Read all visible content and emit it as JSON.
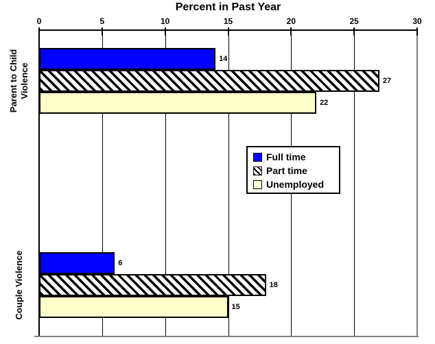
{
  "chart_data": {
    "type": "bar",
    "orientation": "horizontal",
    "title": "Percent in Past Year",
    "axis": {
      "position": "top",
      "min": 0,
      "max": 30,
      "ticks": [
        0,
        5,
        10,
        15,
        20,
        25,
        30
      ],
      "grid": true
    },
    "categories": [
      {
        "name": "parent-to-child-violence",
        "label": "Parent to Child\nViolence"
      },
      {
        "name": "couple-violence",
        "label": "Couple Violence"
      }
    ],
    "series": [
      {
        "name": "Full time",
        "pattern": "solid",
        "color": "#0000ff",
        "values": [
          14,
          6
        ]
      },
      {
        "name": "Part time",
        "pattern": "diagonal-hatch",
        "color": "#000000",
        "values": [
          27,
          18
        ]
      },
      {
        "name": "Unemployed",
        "pattern": "solid",
        "color": "#ffffcc",
        "values": [
          22,
          15
        ]
      }
    ],
    "legend": {
      "position": "middle-right",
      "entries": [
        "Full time",
        "Part time",
        "Unemployed"
      ]
    },
    "colors": {
      "full_time": "#0000ff",
      "part_time_hatch_fg": "#000000",
      "part_time_hatch_bg": "#ffffff",
      "unemployed": "#ffffcc",
      "gridline": "#000000",
      "plot_border_gray": "#808080",
      "background": "#ffffff"
    }
  }
}
